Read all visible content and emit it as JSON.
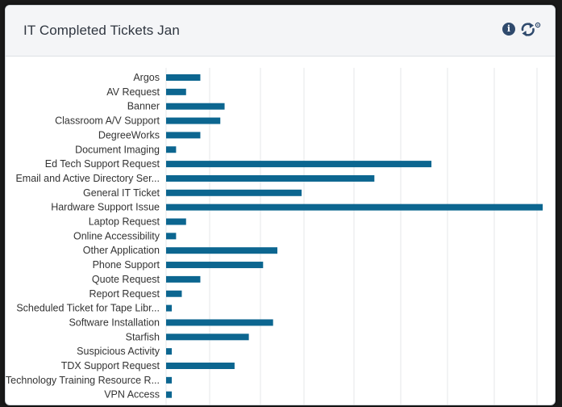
{
  "card": {
    "title": "IT Completed Tickets Jan",
    "info_icon_glyph": "i",
    "info_icon": "info-circle-icon",
    "refresh_icon": "refresh-icon"
  },
  "colors": {
    "bar": "#0c6690",
    "grid": "#e4e7ea",
    "header_bg": "#f4f5f7"
  },
  "chart_data": {
    "type": "bar",
    "orientation": "horizontal",
    "title": "IT Completed Tickets Jan",
    "grid": true,
    "xlim": [
      0,
      26
    ],
    "categories": [
      "Argos",
      "AV Request",
      "Banner",
      "Classroom A/V Support",
      "DegreeWorks",
      "Document Imaging",
      "Ed Tech Support Request",
      "Email and Active Directory Ser...",
      "General IT Ticket",
      "Hardware Support Issue",
      "Laptop Request",
      "Online Accessibility",
      "Other Application",
      "Phone Support",
      "Quote Request",
      "Report Request",
      "Scheduled Ticket for Tape Libr...",
      "Software Installation",
      "Starfish",
      "Suspicious Activity",
      "TDX Support Request",
      "Technology Training Resource R...",
      "VPN Access"
    ],
    "values": [
      2.4,
      1.4,
      4.1,
      3.8,
      2.4,
      0.7,
      18.6,
      14.6,
      9.5,
      26.4,
      1.4,
      0.7,
      7.8,
      6.8,
      2.4,
      1.1,
      0.4,
      7.5,
      5.8,
      0.4,
      4.8,
      0.4,
      0.4
    ]
  }
}
